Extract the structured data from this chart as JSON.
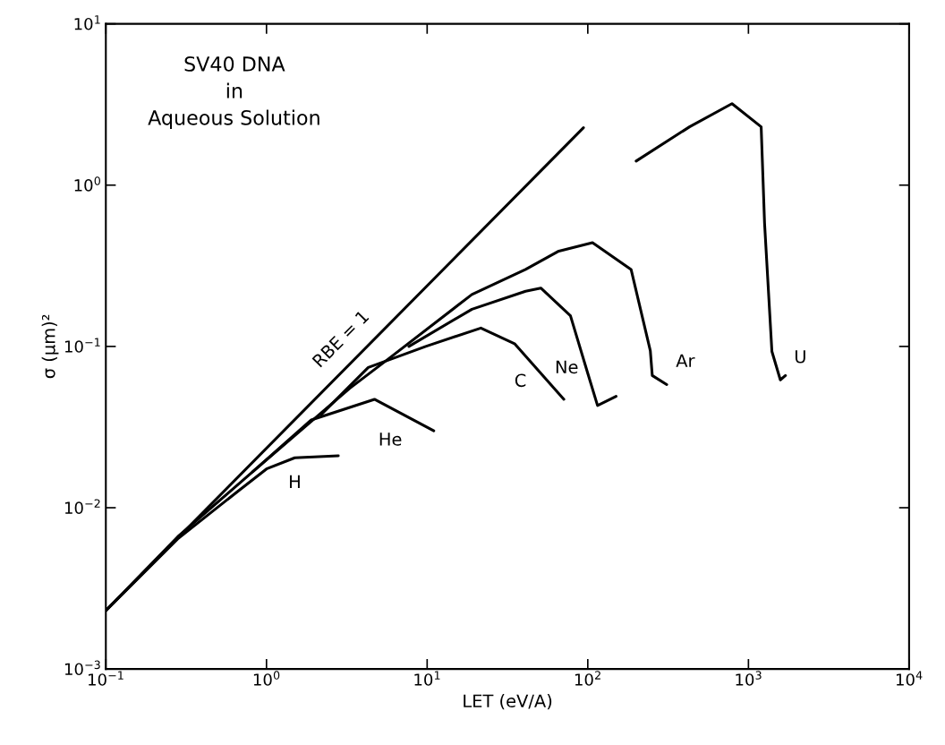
{
  "chart_data": {
    "type": "line",
    "title": "SV40 DNA\nin\nAqueous Solution",
    "xlabel": "LET (eV/A)",
    "ylabel": "σ (μm)²",
    "log": "xy",
    "grid": false,
    "legend": false,
    "marker": "none",
    "line_style": "solid",
    "xlim": [
      0.1,
      10000
    ],
    "ylim": [
      0.001,
      10
    ],
    "xticks": [
      {
        "value": 0.1,
        "label": "10$^{−1}$"
      },
      {
        "value": 1,
        "label": "10$^{0}$"
      },
      {
        "value": 10,
        "label": "10$^{1}$"
      },
      {
        "value": 100,
        "label": "10$^{2}$"
      },
      {
        "value": 1000,
        "label": "10$^{3}$"
      },
      {
        "value": 10000,
        "label": "10$^{4}$"
      }
    ],
    "yticks": [
      {
        "value": 0.001,
        "label": "10$^{−3}$"
      },
      {
        "value": 0.01,
        "label": "10$^{−2}$"
      },
      {
        "value": 0.1,
        "label": "10$^{−1}$"
      },
      {
        "value": 1,
        "label": "10$^{0}$"
      },
      {
        "value": 10,
        "label": "10$^{1}$"
      }
    ],
    "series": [
      {
        "name": "RBE = 1",
        "color": "#000000",
        "x": [
          0.1,
          94
        ],
        "values": [
          0.0023,
          2.27
        ]
      },
      {
        "name": "H",
        "color": "#000000",
        "x": [
          0.1,
          0.28,
          0.66,
          1.0,
          1.5,
          2.8
        ],
        "values": [
          0.0023,
          0.0064,
          0.0126,
          0.0174,
          0.0204,
          0.021
        ]
      },
      {
        "name": "He",
        "color": "#000000",
        "x": [
          0.82,
          1.9,
          4.7,
          11
        ],
        "values": [
          0.0167,
          0.035,
          0.047,
          0.03
        ]
      },
      {
        "name": "C",
        "color": "#000000",
        "x": [
          2.2,
          4.3,
          9.8,
          21.6,
          35,
          71
        ],
        "values": [
          0.038,
          0.074,
          0.1,
          0.13,
          0.104,
          0.047
        ]
      },
      {
        "name": "Ne",
        "color": "#000000",
        "x": [
          7.7,
          19,
          41,
          51,
          78,
          100,
          115,
          150
        ],
        "values": [
          0.1,
          0.17,
          0.22,
          0.23,
          0.155,
          0.068,
          0.043,
          0.049
        ]
      },
      {
        "name": "Ar",
        "color": "#000000",
        "x": [
          0.1,
          0.28,
          0.82,
          3.3,
          5.5,
          19,
          41,
          66,
          107,
          186,
          245,
          252,
          310
        ],
        "values": [
          0.0023,
          0.0066,
          0.0167,
          0.055,
          0.081,
          0.21,
          0.3,
          0.39,
          0.44,
          0.3,
          0.094,
          0.066,
          0.058
        ]
      },
      {
        "name": "U",
        "color": "#000000",
        "x": [
          200,
          430,
          790,
          1200,
          1260,
          1400,
          1580,
          1700
        ],
        "values": [
          1.41,
          2.3,
          3.2,
          2.3,
          0.58,
          0.093,
          0.062,
          0.066
        ]
      }
    ]
  }
}
